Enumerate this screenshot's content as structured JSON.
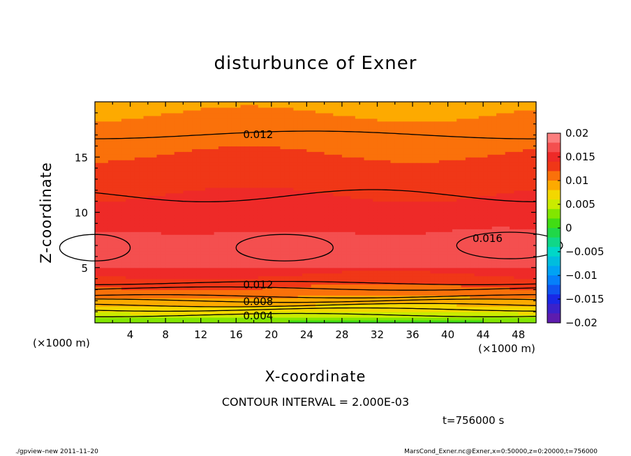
{
  "chart_data": {
    "type": "heatmap",
    "title": "disturbunce of Exner",
    "xlabel": "X-coordinate",
    "ylabel": "Z-coordinate",
    "x_unit": "(×1000 m)",
    "xlim": [
      0,
      50
    ],
    "ylim": [
      0,
      20
    ],
    "x_ticks": [
      4,
      8,
      12,
      16,
      20,
      24,
      28,
      32,
      36,
      40,
      44,
      48
    ],
    "y_ticks": [
      5,
      10,
      15
    ],
    "contour_interval_text": "CONTOUR INTERVAL = 2.000E-03",
    "contour_labels": [
      {
        "text": "0.012",
        "x": 18.5,
        "y": 17.1
      },
      {
        "text": "0.016",
        "x": 44.5,
        "y": 7.7
      },
      {
        "text": "0.012",
        "x": 18.5,
        "y": 3.5
      },
      {
        "text": "0.008",
        "x": 18.5,
        "y": 2.0
      },
      {
        "text": "0.004",
        "x": 18.5,
        "y": 0.7
      }
    ],
    "colorbar": {
      "ticks": [
        "0.02",
        "0.015",
        "0.01",
        "0.005",
        "0",
        "−0.005",
        "−0.01",
        "−0.015",
        "−0.02"
      ],
      "min": -0.02,
      "max": 0.02
    },
    "time_text": "t=756000 s"
  },
  "footer": {
    "left": "./gpview–new   2011–11–20",
    "right": "MarsCond_Exner.nc@Exner,x=0:50000,z=0:20000,t=756000"
  },
  "colors": {
    "high": "#f03a3a",
    "orange": "#ff8a00",
    "yellow": "#e8f000",
    "green": "#33dd00",
    "blue": "#2050ff",
    "purple": "#6a1aa0"
  }
}
